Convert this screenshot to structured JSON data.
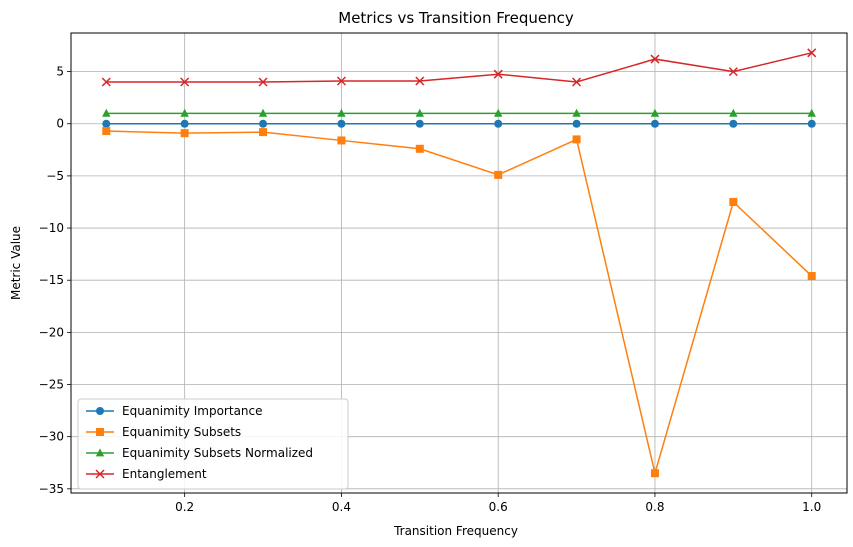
{
  "chart_data": {
    "type": "line",
    "title": "Metrics vs Transition Frequency",
    "xlabel": "Transition Frequency",
    "ylabel": "Metric Value",
    "xlim": [
      0.055,
      1.045
    ],
    "ylim": [
      -35.4,
      8.7
    ],
    "xticks": [
      0.2,
      0.4,
      0.6,
      0.8,
      1.0
    ],
    "xtick_labels": [
      "0.2",
      "0.4",
      "0.6",
      "0.8",
      "1.0"
    ],
    "yticks": [
      5,
      0,
      -5,
      -10,
      -15,
      -20,
      -25,
      -30,
      -35
    ],
    "ytick_labels": [
      "5",
      "0",
      "−5",
      "−10",
      "−15",
      "−20",
      "−25",
      "−30",
      "−35"
    ],
    "grid": true,
    "legend_position": "lower-left",
    "x": [
      0.1,
      0.2,
      0.3,
      0.4,
      0.5,
      0.6,
      0.7,
      0.8,
      0.9,
      1.0
    ],
    "series": [
      {
        "name": "Equanimity Importance",
        "color": "#1f77b4",
        "marker": "circle",
        "values": [
          0,
          0,
          0,
          0,
          0,
          0,
          0,
          0,
          0,
          0
        ]
      },
      {
        "name": "Equanimity Subsets",
        "color": "#ff7f0e",
        "marker": "square",
        "values": [
          -0.7,
          -0.9,
          -0.8,
          -1.6,
          -2.4,
          -4.9,
          -1.5,
          -33.5,
          -7.5,
          -14.6
        ]
      },
      {
        "name": "Equanimity Subsets Normalized",
        "color": "#2ca02c",
        "marker": "triangle",
        "values": [
          1,
          1,
          1,
          1,
          1,
          1,
          1,
          1,
          1,
          1
        ]
      },
      {
        "name": "Entanglement",
        "color": "#d62728",
        "marker": "x",
        "values": [
          4.0,
          4.0,
          4.0,
          4.1,
          4.1,
          4.75,
          4.0,
          6.2,
          5.0,
          6.8
        ]
      }
    ]
  }
}
